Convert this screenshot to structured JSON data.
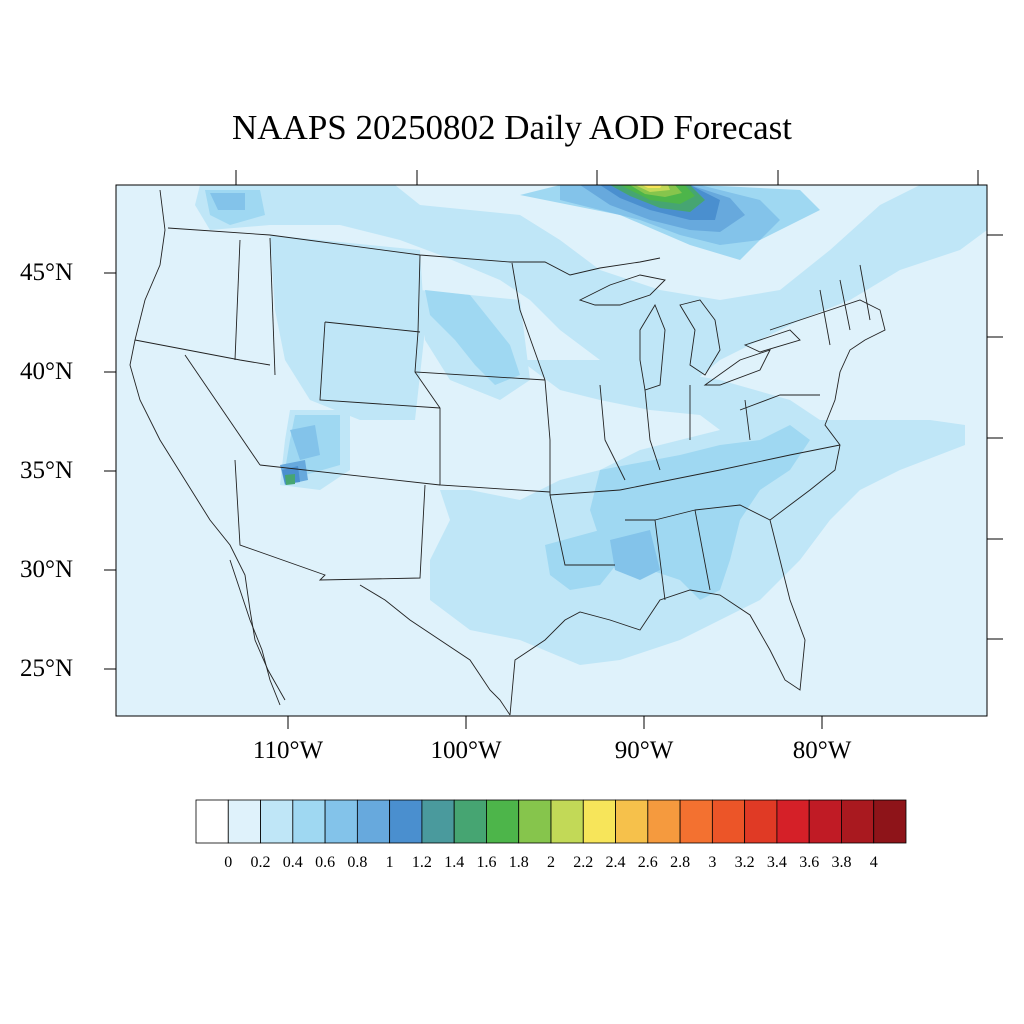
{
  "title": "NAAPS 20250802 Daily AOD Forecast",
  "lat_labels": [
    "45°N",
    "40°N",
    "35°N",
    "30°N",
    "25°N"
  ],
  "lon_labels": [
    "110°W",
    "100°W",
    "90°W",
    "80°W"
  ],
  "colorbar": {
    "labels": [
      "0",
      "0.2",
      "0.4",
      "0.6",
      "0.8",
      "1",
      "1.2",
      "1.4",
      "1.6",
      "1.8",
      "2",
      "2.2",
      "2.4",
      "2.6",
      "2.8",
      "3",
      "3.2",
      "3.4",
      "3.6",
      "3.8",
      "4"
    ],
    "colors": [
      "#ffffff",
      "#dff2fb",
      "#bfe6f7",
      "#9fd8f2",
      "#83c3ea",
      "#67a9dd",
      "#4a8fcf",
      "#4a9a9d",
      "#46a572",
      "#4db54a",
      "#86c54c",
      "#c2d957",
      "#f7e55a",
      "#f6c14b",
      "#f59a3e",
      "#f37130",
      "#ec5528",
      "#e03a25",
      "#d52028",
      "#c01b25",
      "#a9191f",
      "#8e1419"
    ]
  },
  "colors": {
    "ocean": "#dff2fb",
    "level_0_2_0_4": "#bfe6f7",
    "level_0_4_0_6": "#9fd8f2",
    "level_0_6_0_8": "#83c3ea",
    "level_0_8_1": "#67a9dd",
    "level_1_1_2": "#4a8fcf",
    "level_1_4_1_6": "#46a572",
    "level_1_6_1_8": "#4db54a",
    "level_1_8_2": "#86c54c",
    "level_2_2_2": "#c2d957",
    "level_2_2_2_4": "#f7e55a"
  }
}
